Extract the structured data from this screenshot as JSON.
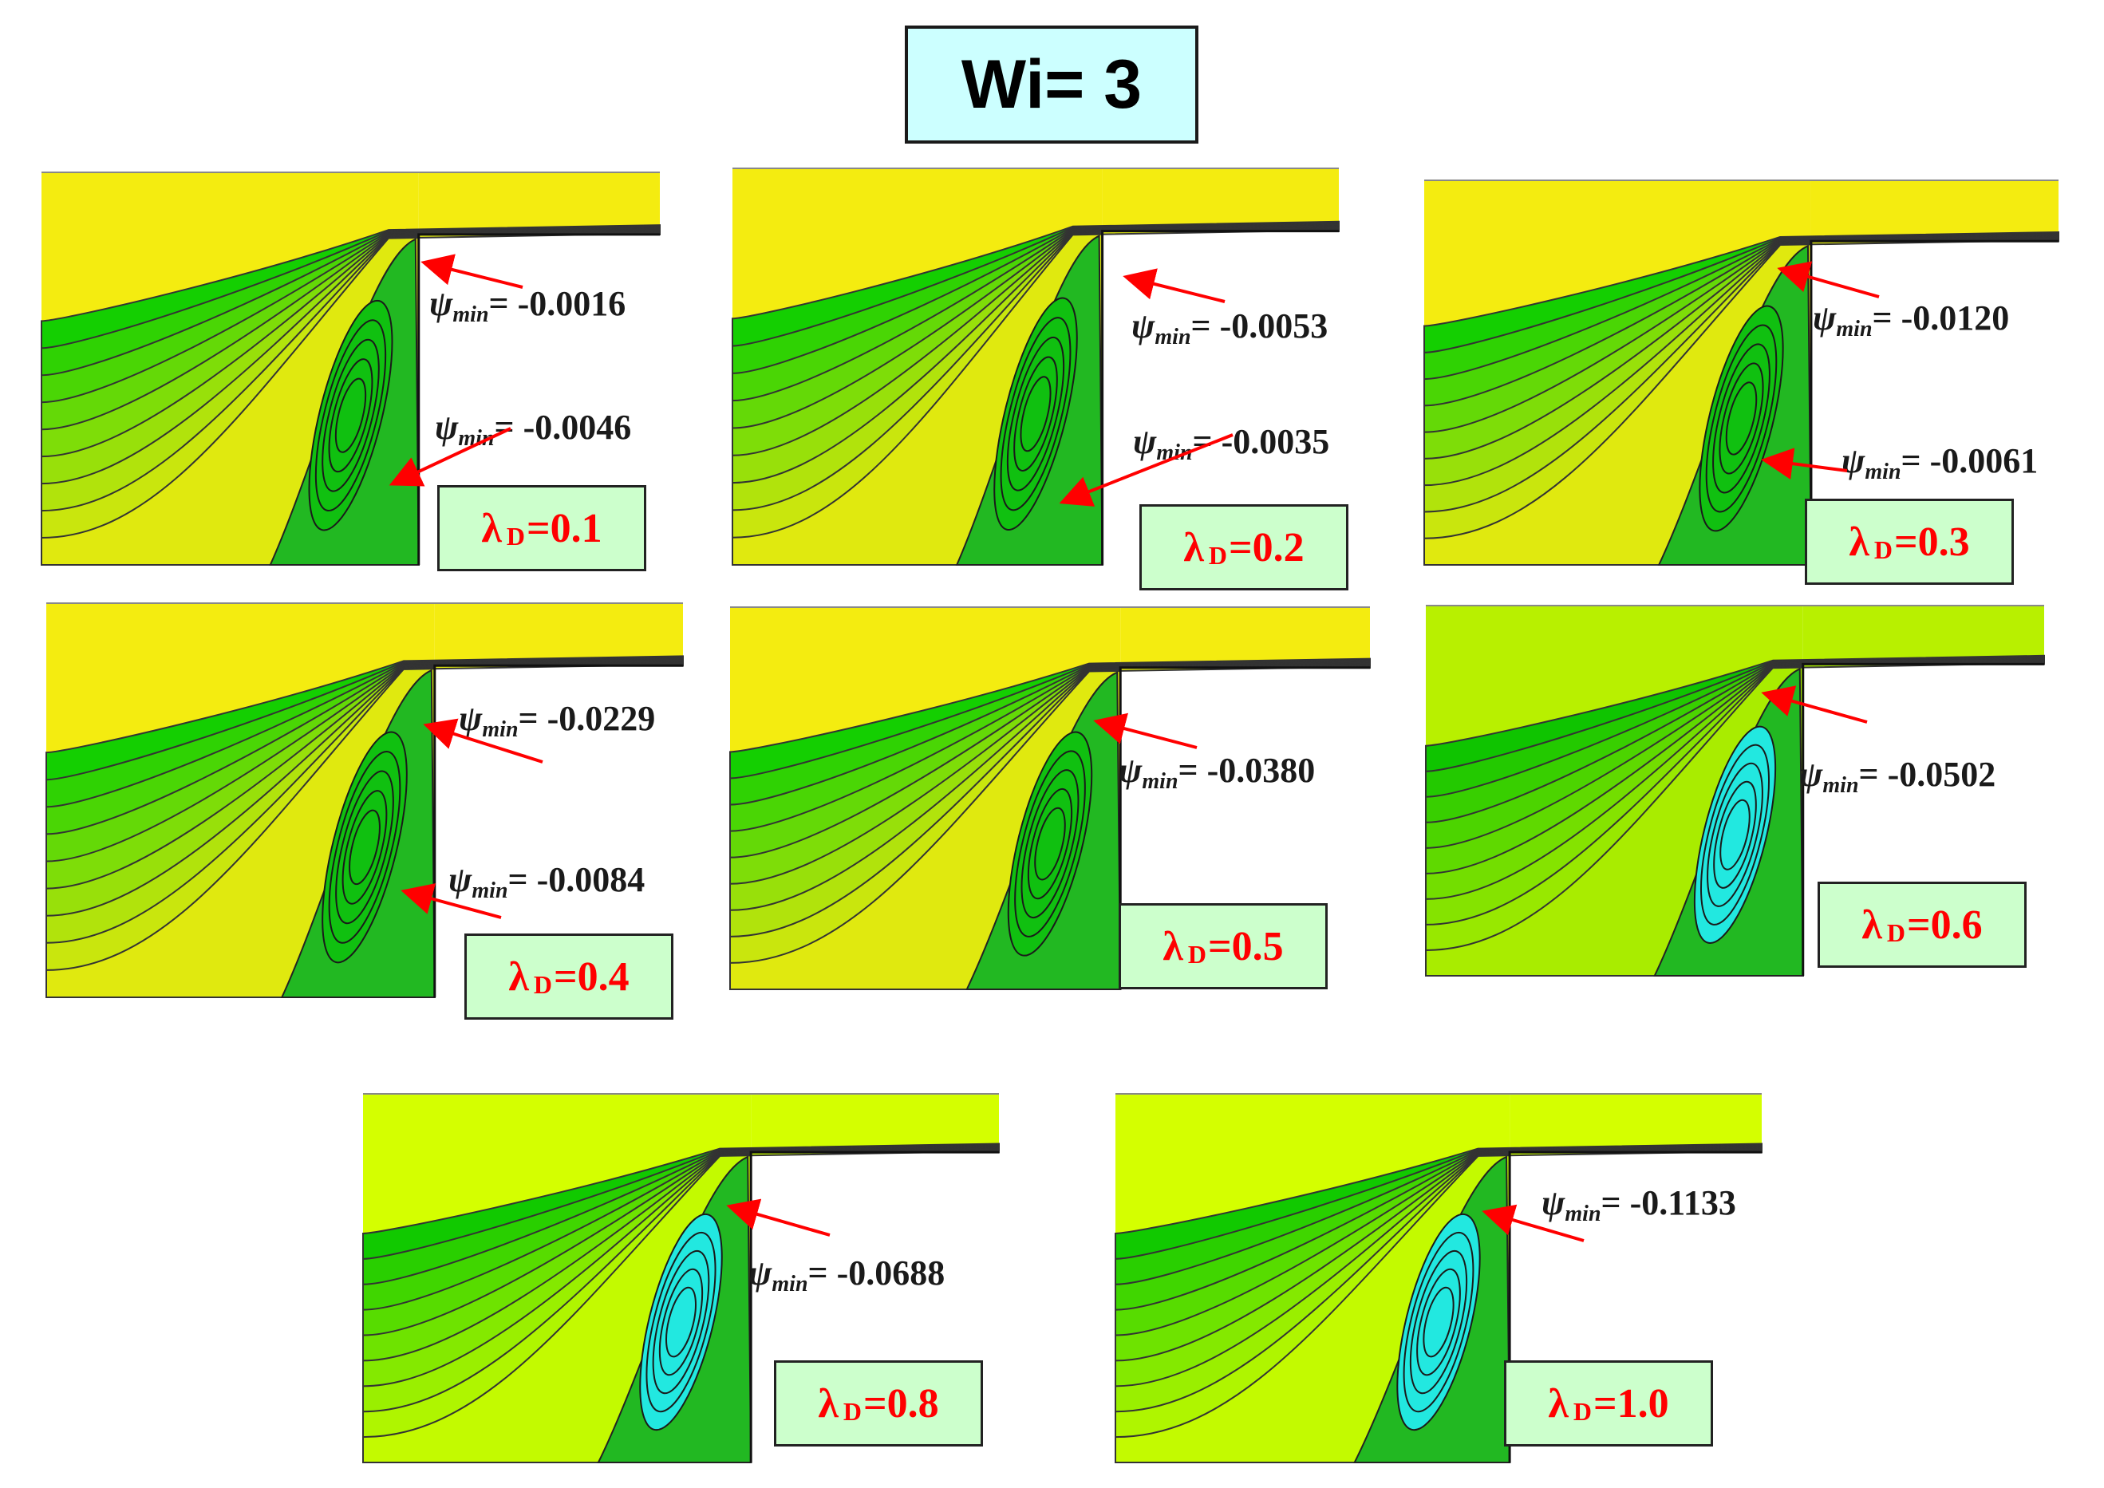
{
  "title": "Wi= 3",
  "psi_symbol": "ψ",
  "psi_sub": "min",
  "lambda_symbol": "λ",
  "lambda_sub": "D",
  "colors": {
    "yellow": "#f4ec10",
    "yellow_green": "#ccff00",
    "green": "#00cc00",
    "cyan": "#00ffee",
    "arrow": "#ff0000",
    "label_bg": "#ccffcc"
  },
  "panels": [
    {
      "lambda_value": "=0.1",
      "psi": [
        "= -0.0016",
        "= -0.0046"
      ]
    },
    {
      "lambda_value": "=0.2",
      "psi": [
        "= -0.0053",
        "= -0.0035"
      ]
    },
    {
      "lambda_value": "=0.3",
      "psi": [
        "= -0.0120",
        "= -0.0061"
      ]
    },
    {
      "lambda_value": "=0.4",
      "psi": [
        "= -0.0229",
        "= -0.0084"
      ]
    },
    {
      "lambda_value": "=0.5",
      "psi": [
        "= -0.0380"
      ]
    },
    {
      "lambda_value": "=0.6",
      "psi": [
        "= -0.0502"
      ]
    },
    {
      "lambda_value": "=0.8",
      "psi": [
        "= -0.0688"
      ]
    },
    {
      "lambda_value": "=1.0",
      "psi": [
        "= -0.1133"
      ]
    }
  ]
}
